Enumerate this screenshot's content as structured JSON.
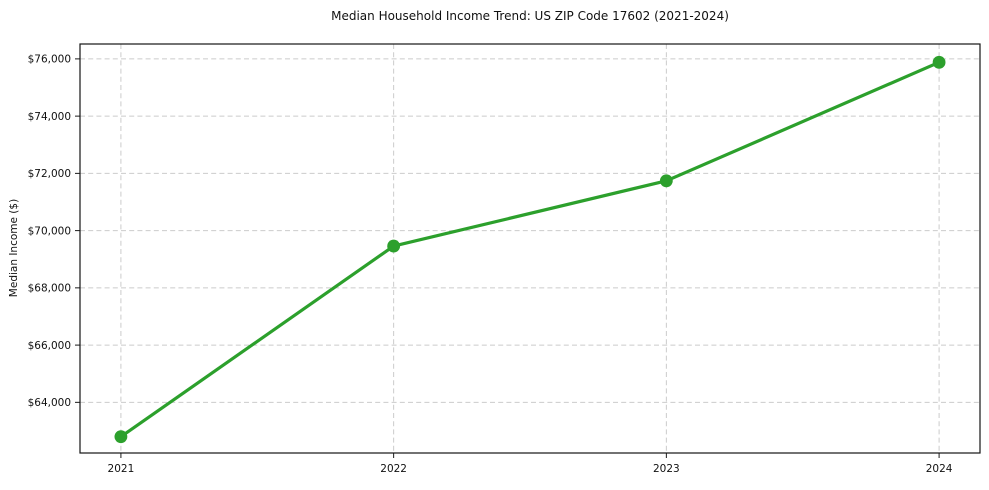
{
  "chart_data": {
    "type": "line",
    "title": "Median Household Income Trend: US ZIP Code 17602 (2021-2024)",
    "xlabel": "",
    "ylabel": "Median Income ($)",
    "x": [
      2021,
      2022,
      2023,
      2024
    ],
    "x_tick_labels": [
      "2021",
      "2022",
      "2023",
      "2024"
    ],
    "series": [
      {
        "name": "Median Household Income",
        "values": [
          62800,
          69460,
          71740,
          75880
        ]
      }
    ],
    "y_ticks": [
      64000,
      66000,
      68000,
      70000,
      72000,
      74000,
      76000
    ],
    "y_tick_labels": [
      "$64,000",
      "$66,000",
      "$68,000",
      "$70,000",
      "$72,000",
      "$74,000",
      "$76,000"
    ],
    "xlim": [
      2020.85,
      2024.15
    ],
    "ylim": [
      62230,
      76520
    ],
    "grid": true,
    "legend": "none",
    "colors": {
      "line": "#2ca02c",
      "marker": "#2ca02c",
      "grid": "#cbcbcb",
      "axis": "#141414",
      "text": "#111111",
      "background": "#ffffff"
    }
  }
}
